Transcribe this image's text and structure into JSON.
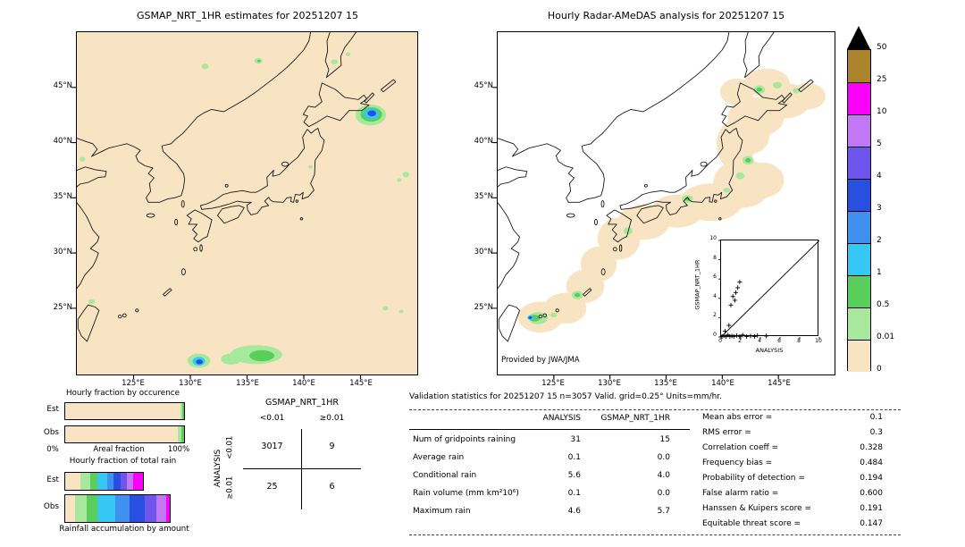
{
  "maps": {
    "left": {
      "title": "GSMAP_NRT_1HR estimates for 20251207 15",
      "lat_labels": [
        "45°N",
        "40°N",
        "35°N",
        "30°N",
        "25°N"
      ],
      "lon_labels": [
        "125°E",
        "130°E",
        "135°E",
        "140°E",
        "145°E"
      ]
    },
    "right": {
      "title": "Hourly Radar-AMeDAS analysis for 20251207 15",
      "credit": "Provided by JWA/JMA",
      "lat_labels": [
        "45°N",
        "40°N",
        "35°N",
        "30°N",
        "25°N"
      ],
      "lon_labels": [
        "125°E",
        "130°E",
        "135°E",
        "140°E",
        "145°E"
      ]
    }
  },
  "colorbar": {
    "labels": [
      "50",
      "25",
      "10",
      "5",
      "4",
      "3",
      "2",
      "1",
      "0.5",
      "0.01",
      "0"
    ],
    "colors": [
      "#ad842e",
      "#fa00fa",
      "#c278f5",
      "#6f55ee",
      "#2850e0",
      "#4090f0",
      "#35c8f5",
      "#5ace5a",
      "#a8e89d",
      "#f8e3c2"
    ],
    "overflow_color": "#000000"
  },
  "fractions": {
    "occurrence_title": "Hourly fraction by occurence",
    "total_rain_title": "Hourly fraction of total rain",
    "areal_caption": "Areal fraction",
    "accum_caption": "Rainfall accumulation by amount",
    "pct_left": "0%",
    "pct_right": "100%",
    "est_label": "Est",
    "obs_label": "Obs"
  },
  "contingency": {
    "title": "GSMAP_NRT_1HR",
    "col_headers": [
      "<0.01",
      "≥0.01"
    ],
    "row_headers": [
      "<0.01",
      "≥0.01"
    ],
    "axis_label": "ANALYSIS",
    "cells": [
      [
        "3017",
        "9"
      ],
      [
        "25",
        "6"
      ]
    ]
  },
  "inset": {
    "ylabel": "GSMAP_NRT_1HR",
    "xlabel": "ANALYSIS",
    "ticks": [
      "0",
      "2",
      "4",
      "6",
      "8",
      "10"
    ]
  },
  "validation": {
    "header": "Validation statistics for 20251207 15  n=3057 Valid. grid=0.25° Units=mm/hr.",
    "columns": [
      "ANALYSIS",
      "GSMAP_NRT_1HR"
    ],
    "rows": [
      {
        "label": "Num of gridpoints raining",
        "analysis": "31",
        "gsmap": "15"
      },
      {
        "label": "Average rain",
        "analysis": "0.1",
        "gsmap": "0.0"
      },
      {
        "label": "Conditional rain",
        "analysis": "5.6",
        "gsmap": "4.0"
      },
      {
        "label": "Rain volume (mm km²10⁶)",
        "analysis": "0.1",
        "gsmap": "0.0"
      },
      {
        "label": "Maximum rain",
        "analysis": "4.6",
        "gsmap": "5.7"
      }
    ],
    "stats": [
      {
        "label": "Mean abs error =",
        "value": "0.1"
      },
      {
        "label": "RMS error =",
        "value": "0.3"
      },
      {
        "label": "Correlation coeff =",
        "value": "0.328"
      },
      {
        "label": "Frequency bias =",
        "value": "0.484"
      },
      {
        "label": "Probability of detection =",
        "value": "0.194"
      },
      {
        "label": "False alarm ratio =",
        "value": "0.600"
      },
      {
        "label": "Hanssen & Kuipers score =",
        "value": "0.191"
      },
      {
        "label": "Equitable threat score =",
        "value": "0.147"
      }
    ]
  },
  "chart_data": [
    {
      "type": "table",
      "title": "Contingency table of gridpoint counts",
      "col_axis": "GSMAP_NRT_1HR",
      "row_axis": "ANALYSIS",
      "columns": [
        "<0.01",
        "≥0.01"
      ],
      "rows": [
        "<0.01",
        "≥0.01"
      ],
      "values": [
        [
          3017,
          9
        ],
        [
          25,
          6
        ]
      ]
    },
    {
      "type": "table",
      "title": "Validation statistics for 20251207 15",
      "n": 3057,
      "grid": "0.25°",
      "units": "mm/hr",
      "columns": [
        "ANALYSIS",
        "GSMAP_NRT_1HR"
      ],
      "rows": [
        [
          "Num of gridpoints raining",
          31,
          15
        ],
        [
          "Average rain",
          0.1,
          0.0
        ],
        [
          "Conditional rain",
          5.6,
          4.0
        ],
        [
          "Rain volume (mm km²10⁶)",
          0.1,
          0.0
        ],
        [
          "Maximum rain",
          4.6,
          5.7
        ]
      ],
      "scores": {
        "Mean abs error": 0.1,
        "RMS error": 0.3,
        "Correlation coeff": 0.328,
        "Frequency bias": 0.484,
        "Probability of detection": 0.194,
        "False alarm ratio": 0.6,
        "Hanssen & Kuipers score": 0.191,
        "Equitable threat score": 0.147
      }
    },
    {
      "type": "scatter",
      "title": "GSMAP_NRT_1HR vs ANALYSIS (inset)",
      "xlabel": "ANALYSIS",
      "ylabel": "GSMAP_NRT_1HR",
      "xlim": [
        0,
        10
      ],
      "ylim": [
        0,
        10
      ],
      "diagonal_line": true,
      "points": [
        [
          0.1,
          0.05
        ],
        [
          0.3,
          0.1
        ],
        [
          0.5,
          0.05
        ],
        [
          0.7,
          0.2
        ],
        [
          0.9,
          0.05
        ],
        [
          1.1,
          0.1
        ],
        [
          1.3,
          0.05
        ],
        [
          1.6,
          0.15
        ],
        [
          1.9,
          0.05
        ],
        [
          2.2,
          0.2
        ],
        [
          2.6,
          0.05
        ],
        [
          3.0,
          0.1
        ],
        [
          3.4,
          0.05
        ],
        [
          3.7,
          0.15
        ],
        [
          4.6,
          0.1
        ],
        [
          0.4,
          0.6
        ],
        [
          0.8,
          1.2
        ],
        [
          1.0,
          3.3
        ],
        [
          1.2,
          4.2
        ],
        [
          1.5,
          4.6
        ],
        [
          1.7,
          5.1
        ],
        [
          1.9,
          5.7
        ],
        [
          1.4,
          3.8
        ]
      ]
    },
    {
      "type": "bar",
      "title": "Hourly fraction by occurence",
      "categories": [
        "Est",
        "Obs"
      ],
      "note": "stacked horizontal areal-fraction bars, 0% to 100%",
      "series": [
        {
          "name": "Est",
          "segments": [
            {
              "color": "#f8e3c2",
              "pct": 97.0
            },
            {
              "color": "#a8e89d",
              "pct": 1.8
            },
            {
              "color": "#5ace5a",
              "pct": 1.2
            }
          ]
        },
        {
          "name": "Obs",
          "segments": [
            {
              "color": "#f8e3c2",
              "pct": 94.5
            },
            {
              "color": "#a8e89d",
              "pct": 3.0
            },
            {
              "color": "#5ace5a",
              "pct": 2.5
            }
          ]
        }
      ]
    },
    {
      "type": "bar",
      "title": "Hourly fraction of total rain",
      "categories": [
        "Est",
        "Obs"
      ],
      "note": "stacked bars colored by rain-rate class (rainfall accumulation by amount), estimated fractions",
      "series": [
        {
          "name": "Est",
          "segments": [
            {
              "color": "#f8e3c2",
              "pct": 13
            },
            {
              "color": "#a8e89d",
              "pct": 8
            },
            {
              "color": "#5ace5a",
              "pct": 6
            },
            {
              "color": "#35c8f5",
              "pct": 9
            },
            {
              "color": "#4090f0",
              "pct": 5
            },
            {
              "color": "#2850e0",
              "pct": 6
            },
            {
              "color": "#6f55ee",
              "pct": 5
            },
            {
              "color": "#c278f5",
              "pct": 6
            },
            {
              "color": "#fa00fa",
              "pct": 8
            }
          ]
        },
        {
          "name": "Obs",
          "segments": [
            {
              "color": "#f8e3c2",
              "pct": 8
            },
            {
              "color": "#a8e89d",
              "pct": 10
            },
            {
              "color": "#5ace5a",
              "pct": 9
            },
            {
              "color": "#35c8f5",
              "pct": 15
            },
            {
              "color": "#4090f0",
              "pct": 12
            },
            {
              "color": "#2850e0",
              "pct": 13
            },
            {
              "color": "#6f55ee",
              "pct": 10
            },
            {
              "color": "#c278f5",
              "pct": 8
            },
            {
              "color": "#fa00fa",
              "pct": 3
            }
          ]
        }
      ]
    }
  ]
}
